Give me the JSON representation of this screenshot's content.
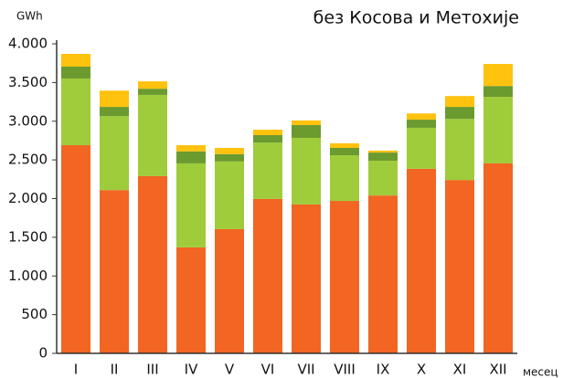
{
  "chart_data": {
    "type": "stacked_bar",
    "title": "без Косова и Метохије",
    "y_label": "GWh",
    "x_label": "месец",
    "categories": [
      "I",
      "II",
      "III",
      "IV",
      "V",
      "VI",
      "VII",
      "VIII",
      "IX",
      "X",
      "XI",
      "XII"
    ],
    "series": [
      {
        "color": "#f26522",
        "values": [
          2690,
          2110,
          2290,
          1370,
          1605,
          1995,
          1925,
          1970,
          2040,
          2385,
          2240,
          2455
        ]
      },
      {
        "color": "#9fcc3b",
        "values": [
          862,
          955,
          1050,
          1085,
          875,
          730,
          860,
          590,
          450,
          530,
          790,
          860
        ]
      },
      {
        "color": "#6b9a2f",
        "values": [
          153,
          120,
          80,
          155,
          95,
          95,
          165,
          95,
          105,
          105,
          155,
          140
        ]
      },
      {
        "color": "#ffc20e",
        "values": [
          165,
          210,
          95,
          80,
          80,
          70,
          60,
          60,
          25,
          80,
          140,
          285
        ]
      }
    ],
    "ylim": [
      0,
      4000
    ],
    "yticks": [
      0,
      500,
      {
        "value": 1000,
        "label": "1.000"
      },
      {
        "value": 1500,
        "label": "1.500"
      },
      {
        "value": 2000,
        "label": "2.000"
      },
      {
        "value": 2500,
        "label": "2.500"
      },
      {
        "value": 3000,
        "label": "3.000"
      },
      {
        "value": 3500,
        "label": "3.500"
      },
      {
        "value": 4000,
        "label": "4.000"
      }
    ],
    "grid": false
  }
}
